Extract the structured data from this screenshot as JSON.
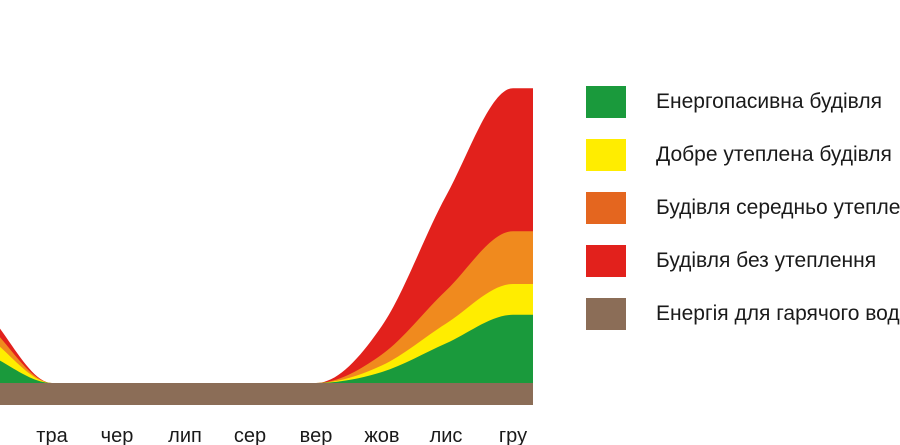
{
  "chart_data": {
    "type": "area",
    "stacked": true,
    "title": "",
    "xlabel": "",
    "ylabel": "",
    "categories": [
      "тра",
      "чер",
      "лип",
      "сер",
      "вер",
      "жов",
      "лис",
      "гру"
    ],
    "series": [
      {
        "name": "Енергія для гарячого водопостачання",
        "color": "#8b6d57",
        "values": [
          1,
          1,
          1,
          1,
          1,
          1,
          1,
          1
        ]
      },
      {
        "name": "Енергопасивна будівля",
        "color": "#1a9a3c",
        "values": [
          0,
          0,
          0,
          0,
          0,
          0.5,
          1.8,
          3.1
        ]
      },
      {
        "name": "Добре утеплена будівля",
        "color": "#ffed00",
        "values": [
          0,
          0,
          0,
          0,
          0,
          0.3,
          0.9,
          1.4
        ]
      },
      {
        "name": "Будівля середньо утеплена",
        "color": "#f08a1e",
        "values": [
          0,
          0,
          0,
          0,
          0,
          0.5,
          1.5,
          2.4
        ]
      },
      {
        "name": "Будівля без утеплення",
        "color": "#e2211c",
        "values": [
          0,
          0,
          0,
          0,
          0,
          1.3,
          4.3,
          6.5
        ]
      }
    ]
  },
  "legend": {
    "items": [
      {
        "label": "Енергопасивна будівля",
        "color": "#1a9a3c"
      },
      {
        "label": "Добре утеплена будівля",
        "color": "#ffed00"
      },
      {
        "label": "Будівля середньо утеплена",
        "color": "#e4661f"
      },
      {
        "label": "Будівля без утеплення",
        "color": "#e2211c"
      },
      {
        "label": "Енергія для гарячого водопостачання",
        "color": "#8b6d57"
      }
    ]
  }
}
